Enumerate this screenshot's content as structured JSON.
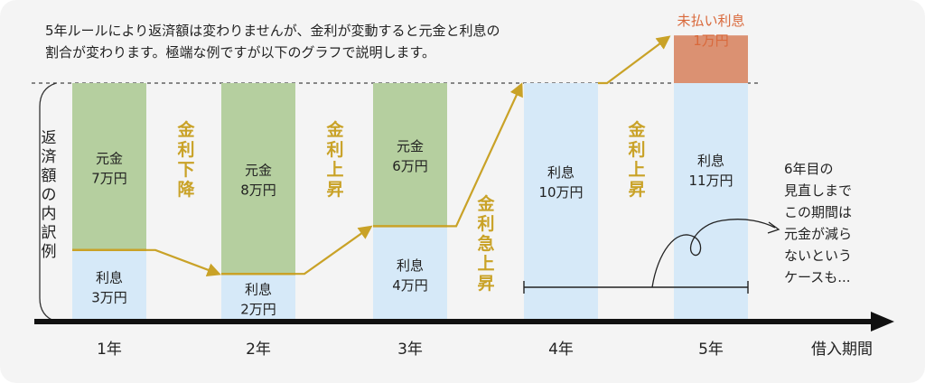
{
  "intro": {
    "line1": "5年ルールにより返済額は変わりませんが、金利が変動すると元金と利息の",
    "line2": "割合が変わります。極端な例ですが以下のグラフで説明します。"
  },
  "y_axis_label": [
    "返",
    "済",
    "額",
    "の",
    "内",
    "訳",
    "例"
  ],
  "x_axis_label": "借入期間",
  "colors": {
    "principal": "#b5cf9f",
    "interest": "#d6e9f8",
    "unpaid": "#db9172",
    "accent": "#c9a227",
    "unpaid_text": "#d9683a",
    "axis": "#111111"
  },
  "chart_data": {
    "type": "bar",
    "categories": [
      "1年",
      "2年",
      "3年",
      "4年",
      "5年"
    ],
    "series": [
      {
        "name": "利息",
        "values": [
          3,
          2,
          4,
          10,
          11
        ]
      },
      {
        "name": "元金",
        "values": [
          7,
          8,
          6,
          0,
          0
        ]
      }
    ],
    "labels": [
      {
        "principal": [
          "元金",
          "7万円"
        ],
        "interest": [
          "利息",
          "3万円"
        ]
      },
      {
        "principal": [
          "元金",
          "8万円"
        ],
        "interest": [
          "利息",
          "2万円"
        ]
      },
      {
        "principal": [
          "元金",
          "6万円"
        ],
        "interest": [
          "利息",
          "4万円"
        ]
      },
      {
        "principal": null,
        "interest": [
          "利息",
          "10万円"
        ]
      },
      {
        "principal": null,
        "interest": [
          "利息",
          "11万円"
        ]
      }
    ],
    "unpaid": {
      "category": "5年",
      "value": 1,
      "label": [
        "未払い利息",
        "1万円"
      ]
    },
    "transitions": [
      [
        "金",
        "利",
        "下",
        "降"
      ],
      [
        "金",
        "利",
        "上",
        "昇"
      ],
      [
        "金",
        "利",
        "急",
        "上",
        "昇"
      ],
      [
        "金",
        "利",
        "上",
        "昇"
      ]
    ],
    "annotation": [
      "6年目の",
      "見直しまで",
      "この期間は",
      "元金が減ら",
      "ないという",
      "ケースも..."
    ]
  }
}
